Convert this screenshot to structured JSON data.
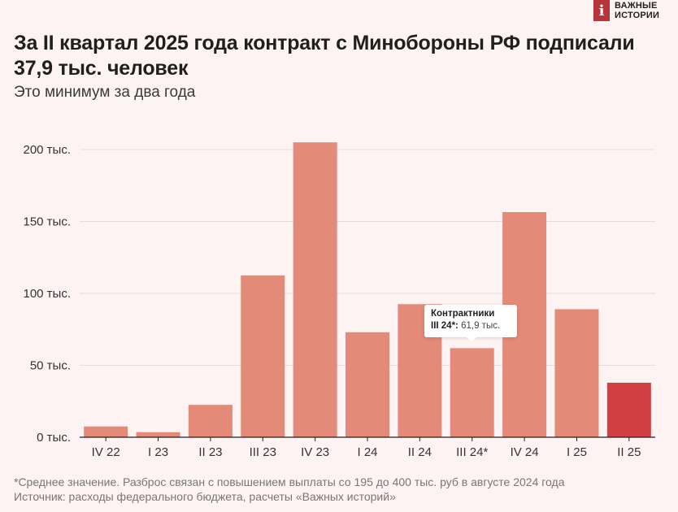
{
  "logo": {
    "mark": "i",
    "line1": "ВАЖНЫЕ",
    "line2": "ИСТОРИИ"
  },
  "title": "За II квартал 2025 года контракт с Минобороны РФ подписали 37,9 тыс. человек",
  "subtitle": "Это минимум за два года",
  "footnote": {
    "line1": "*Среднее значение. Разброс связан с повышением выплаты со 195 до 400 тыс. руб в августе 2024 года",
    "line2": "Источник: расходы федерального бюджета, расчеты «Важных историй»"
  },
  "tooltip": {
    "title": "Контрактники",
    "label": "III 24*:",
    "value": "61,9 тыс."
  },
  "colors": {
    "bar": "#e48a78",
    "highlight": "#d13f45",
    "grid": "#dedede",
    "axis": "#222222"
  },
  "chart_data": {
    "type": "bar",
    "categories": [
      "IV 22",
      "I 23",
      "II 23",
      "III 23",
      "IV 23",
      "I 24",
      "II 24",
      "III 24*",
      "IV 24",
      "I 25",
      "II 25"
    ],
    "values": [
      7.5,
      3.5,
      22.5,
      112.5,
      205,
      73,
      92.5,
      61.9,
      156.5,
      89,
      37.9
    ],
    "highlight_index": 10,
    "yticks": [
      0,
      50,
      100,
      150,
      200
    ],
    "ytick_labels": [
      "0 тыс.",
      "50 тыс.",
      "100 тыс.",
      "150 тыс.",
      "200 тыс."
    ],
    "ylim": [
      0,
      210
    ],
    "grid": true
  }
}
